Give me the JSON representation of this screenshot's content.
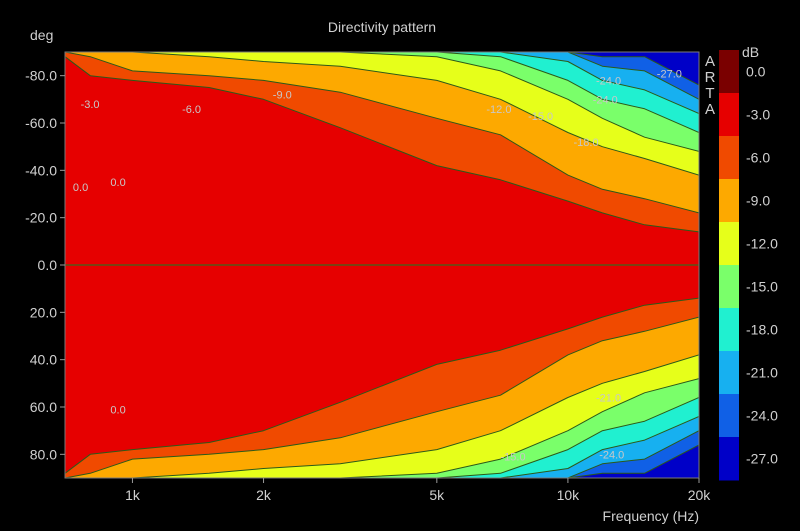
{
  "chart_data": {
    "type": "heatmap",
    "title": "Directivity pattern",
    "xlabel": "Frequency (Hz)",
    "ylabel": "deg",
    "colorbar_label": "dB",
    "brand": "ARTA",
    "x_scale": "log",
    "xlim": [
      700,
      20000
    ],
    "ylim": [
      -90,
      90
    ],
    "y_inverted": true,
    "x_ticks": [
      {
        "value": 1000,
        "label": "1k"
      },
      {
        "value": 2000,
        "label": "2k"
      },
      {
        "value": 5000,
        "label": "5k"
      },
      {
        "value": 10000,
        "label": "10k"
      },
      {
        "value": 20000,
        "label": "20k"
      }
    ],
    "y_ticks": [
      {
        "value": -80,
        "label": "-80.0"
      },
      {
        "value": -60,
        "label": "-60.0"
      },
      {
        "value": -40,
        "label": "-40.0"
      },
      {
        "value": -20,
        "label": "-20.0"
      },
      {
        "value": 0,
        "label": "0.0"
      },
      {
        "value": 20,
        "label": "20.0"
      },
      {
        "value": 40,
        "label": "40.0"
      },
      {
        "value": 60,
        "label": "60.0"
      },
      {
        "value": 80,
        "label": "80.0"
      }
    ],
    "levels": [
      0.0,
      -3.0,
      -6.0,
      -9.0,
      -12.0,
      -15.0,
      -18.0,
      -21.0,
      -24.0,
      -27.0
    ],
    "level_labels": [
      "0.0",
      "-3.0",
      "-6.0",
      "-9.0",
      "-12.0",
      "-15.0",
      "-18.0",
      "-21.0",
      "-24.0",
      "-27.0"
    ],
    "colors": [
      "#7a0000",
      "#e60000",
      "#f04a00",
      "#fda900",
      "#e6ff1a",
      "#7aff6a",
      "#20f0d0",
      "#17b0f0",
      "#1060e6",
      "#0000c8"
    ],
    "contour_bands_deg": {
      "frequencies": [
        700,
        800,
        1000,
        1500,
        2000,
        3000,
        5000,
        7000,
        10000,
        12000,
        15000,
        20000
      ],
      "minus3": [
        88,
        80,
        78,
        75,
        70,
        58,
        42,
        36,
        27,
        22,
        17,
        14
      ],
      "minus6": [
        90,
        88,
        82,
        80,
        78,
        73,
        62,
        55,
        38,
        32,
        28,
        22
      ],
      "minus9": [
        90,
        90,
        90,
        88,
        86,
        84,
        78,
        70,
        56,
        50,
        45,
        38
      ],
      "minus12": [
        90,
        90,
        90,
        90,
        90,
        90,
        88,
        82,
        70,
        62,
        54,
        48
      ],
      "minus15": [
        90,
        90,
        90,
        90,
        90,
        90,
        90,
        88,
        78,
        70,
        66,
        56
      ],
      "minus18": [
        90,
        90,
        90,
        90,
        90,
        90,
        90,
        90,
        86,
        78,
        74,
        64
      ],
      "minus21": [
        90,
        90,
        90,
        90,
        90,
        90,
        90,
        90,
        90,
        84,
        82,
        70
      ],
      "minus24": [
        90,
        90,
        90,
        90,
        90,
        90,
        90,
        90,
        90,
        88,
        88,
        76
      ]
    },
    "contour_labels": [
      {
        "text": "-3.0",
        "f": 760,
        "deg": -68
      },
      {
        "text": "-6.0",
        "f": 1300,
        "deg": -66
      },
      {
        "text": "-9.0",
        "f": 2100,
        "deg": -72
      },
      {
        "text": "0.0",
        "f": 730,
        "deg": -33
      },
      {
        "text": "0.0",
        "f": 890,
        "deg": -35
      },
      {
        "text": "-12.0",
        "f": 6500,
        "deg": -66
      },
      {
        "text": "-15.0",
        "f": 8100,
        "deg": -63
      },
      {
        "text": "-18.0",
        "f": 10300,
        "deg": -52
      },
      {
        "text": "-24.0",
        "f": 11600,
        "deg": -78
      },
      {
        "text": "-24.0",
        "f": 11400,
        "deg": -70
      },
      {
        "text": "-27.0",
        "f": 16000,
        "deg": -81
      },
      {
        "text": "0.0",
        "f": 890,
        "deg": 61
      },
      {
        "text": "-21.0",
        "f": 11600,
        "deg": 56
      },
      {
        "text": "-15.0",
        "f": 7000,
        "deg": 81
      },
      {
        "text": "-24.0",
        "f": 11800,
        "deg": 80
      }
    ]
  }
}
